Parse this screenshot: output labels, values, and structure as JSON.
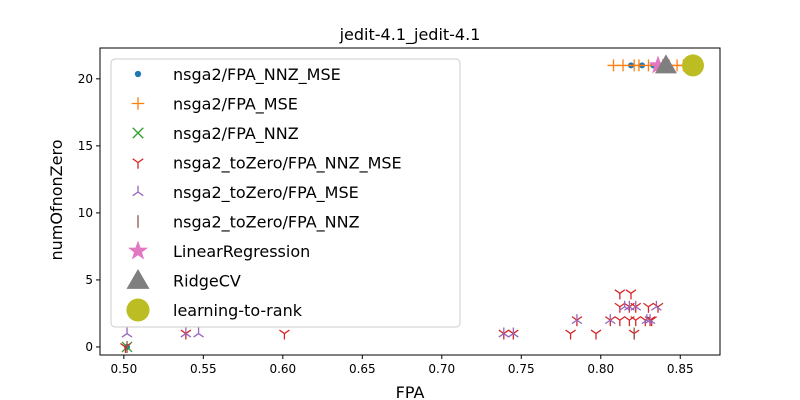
{
  "chart_data": {
    "type": "scatter",
    "title": "jedit-4.1_jedit-4.1",
    "xlabel": "FPA",
    "ylabel": "numOfnonZero",
    "xlim": [
      0.485,
      0.875
    ],
    "ylim": [
      -0.6,
      22.3
    ],
    "xticks": [
      "0.50",
      "0.55",
      "0.60",
      "0.65",
      "0.70",
      "0.75",
      "0.80",
      "0.85"
    ],
    "xtick_values": [
      0.5,
      0.55,
      0.6,
      0.65,
      0.7,
      0.75,
      0.8,
      0.85
    ],
    "yticks": [
      "0",
      "5",
      "10",
      "15",
      "20"
    ],
    "ytick_values": [
      0,
      5,
      10,
      15,
      20
    ],
    "grid": false,
    "legend_position": "upper-left",
    "series": [
      {
        "name": "nsga2/FPA_NNZ_MSE",
        "marker": "dot",
        "color": "#1f77b4",
        "points": [
          [
            0.819,
            21
          ],
          [
            0.826,
            21
          ],
          [
            0.833,
            21
          ],
          [
            0.502,
            0
          ]
        ]
      },
      {
        "name": "nsga2/FPA_MSE",
        "marker": "plus",
        "color": "#ff7f0e",
        "points": [
          [
            0.808,
            21
          ],
          [
            0.814,
            21
          ],
          [
            0.821,
            21
          ],
          [
            0.824,
            21
          ],
          [
            0.83,
            21
          ],
          [
            0.839,
            21
          ],
          [
            0.843,
            21
          ],
          [
            0.848,
            21
          ],
          [
            0.852,
            21
          ]
        ]
      },
      {
        "name": "nsga2/FPA_NNZ",
        "marker": "x",
        "color": "#2ca02c",
        "points": [
          [
            0.502,
            0
          ]
        ]
      },
      {
        "name": "nsga2_toZero/FPA_NNZ_MSE",
        "marker": "tri-down",
        "color": "#d62728",
        "points": [
          [
            0.501,
            0
          ],
          [
            0.539,
            1
          ],
          [
            0.601,
            1
          ],
          [
            0.739,
            1
          ],
          [
            0.745,
            1
          ],
          [
            0.781,
            1
          ],
          [
            0.785,
            2
          ],
          [
            0.797,
            1
          ],
          [
            0.806,
            2
          ],
          [
            0.812,
            2
          ],
          [
            0.812,
            4
          ],
          [
            0.812,
            3
          ],
          [
            0.818,
            3
          ],
          [
            0.818,
            2
          ],
          [
            0.819,
            4
          ],
          [
            0.822,
            3
          ],
          [
            0.822,
            2
          ],
          [
            0.828,
            2
          ],
          [
            0.83,
            3
          ],
          [
            0.831,
            2
          ],
          [
            0.832,
            2
          ],
          [
            0.836,
            3
          ],
          [
            0.821,
            1
          ]
        ]
      },
      {
        "name": "nsga2_toZero/FPA_MSE",
        "marker": "tri-up",
        "color": "#9467bd",
        "points": [
          [
            0.502,
            1
          ],
          [
            0.539,
            1
          ],
          [
            0.547,
            1
          ],
          [
            0.739,
            1
          ],
          [
            0.745,
            1
          ],
          [
            0.785,
            2
          ],
          [
            0.806,
            2
          ],
          [
            0.815,
            3
          ],
          [
            0.818,
            3
          ],
          [
            0.822,
            3
          ],
          [
            0.829,
            2
          ],
          [
            0.831,
            2
          ],
          [
            0.835,
            3
          ]
        ]
      },
      {
        "name": "nsga2_toZero/FPA_NNZ",
        "marker": "vline",
        "color": "#8c564b",
        "points": [
          [
            0.502,
            0
          ],
          [
            0.821,
            1
          ]
        ]
      },
      {
        "name": "LinearRegression",
        "marker": "star",
        "color": "#e377c2",
        "points": [
          [
            0.836,
            21
          ]
        ]
      },
      {
        "name": "RidgeCV",
        "marker": "triangle",
        "color": "#7f7f7f",
        "points": [
          [
            0.841,
            21
          ]
        ]
      },
      {
        "name": "learning-to-rank",
        "marker": "bigdot",
        "color": "#bcbd22",
        "points": [
          [
            0.858,
            21
          ]
        ]
      }
    ]
  }
}
